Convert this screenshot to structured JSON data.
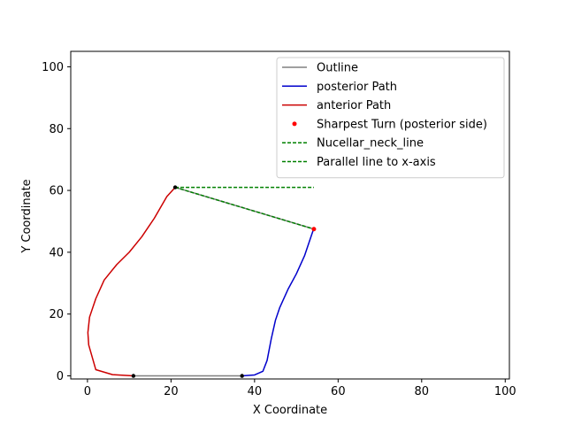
{
  "chart_data": {
    "type": "line",
    "xlabel": "X Coordinate",
    "ylabel": "Y Coordinate",
    "xlim": [
      -4,
      101
    ],
    "ylim": [
      -1,
      105
    ],
    "xticks": [
      0,
      20,
      40,
      60,
      80,
      100
    ],
    "yticks": [
      0,
      20,
      40,
      60,
      80,
      100
    ],
    "grid": false,
    "legend_position": "top-right",
    "series": [
      {
        "name": "Outline",
        "color": "#808080",
        "style": "solid",
        "x": [
          21,
          54.2
        ],
        "y": [
          61,
          47.5
        ]
      },
      {
        "name": "Outline",
        "color": "#808080",
        "style": "solid",
        "x": [
          11,
          37
        ],
        "y": [
          0,
          0
        ]
      },
      {
        "name": "posterior Path",
        "color": "#0000cc",
        "style": "solid",
        "x": [
          37,
          40,
          42,
          43,
          44,
          45,
          46,
          48,
          50,
          52,
          53,
          54
        ],
        "y": [
          0,
          0.3,
          1.5,
          5,
          12,
          18,
          22,
          28,
          33,
          39,
          43,
          47
        ]
      },
      {
        "name": "anterior Path",
        "color": "#cc0000",
        "style": "solid",
        "x": [
          11,
          6,
          2,
          0.3,
          0.1,
          0.5,
          2,
          4,
          7,
          10,
          13,
          16,
          19,
          21
        ],
        "y": [
          0,
          0.4,
          2,
          10,
          14,
          19,
          25,
          31,
          36,
          40,
          45,
          51,
          58,
          61
        ]
      },
      {
        "name": "Nucellar_neck_line",
        "color": "#008000",
        "style": "dashed",
        "x": [
          21,
          54.2
        ],
        "y": [
          61,
          47.5
        ]
      },
      {
        "name": "Parallel line to x-axis",
        "color": "#008000",
        "style": "dashed",
        "x": [
          21,
          54.2
        ],
        "y": [
          61,
          61
        ]
      }
    ],
    "sharpest_turn": {
      "name": "Sharpest Turn (posterior side)",
      "color": "#ff0000",
      "x": 54.2,
      "y": 47.5
    },
    "black_points": [
      {
        "x": 11,
        "y": 0
      },
      {
        "x": 37,
        "y": 0
      },
      {
        "x": 21,
        "y": 61
      }
    ],
    "legend": [
      {
        "label": "Outline",
        "color": "#808080",
        "kind": "line"
      },
      {
        "label": "posterior Path",
        "color": "#0000cc",
        "kind": "line"
      },
      {
        "label": "anterior Path",
        "color": "#cc0000",
        "kind": "line"
      },
      {
        "label": "Sharpest Turn (posterior side)",
        "color": "#ff0000",
        "kind": "point"
      },
      {
        "label": "Nucellar_neck_line",
        "color": "#008000",
        "kind": "dashed"
      },
      {
        "label": "Parallel line to x-axis",
        "color": "#008000",
        "kind": "dashed"
      }
    ]
  }
}
